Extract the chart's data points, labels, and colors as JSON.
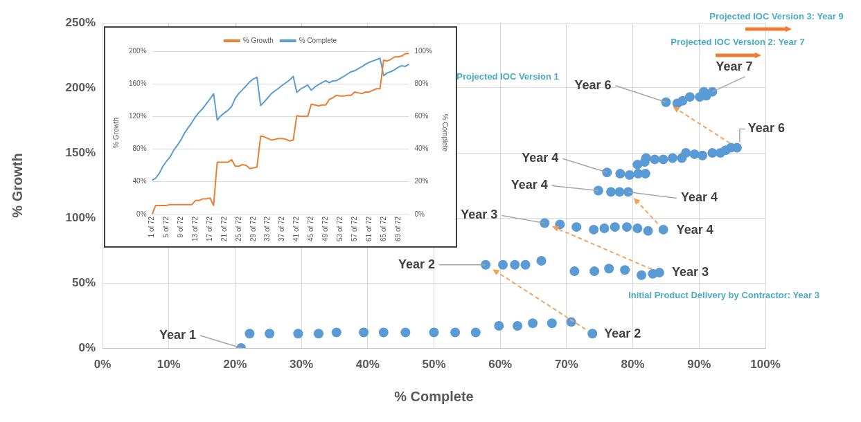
{
  "chart_data": [
    {
      "type": "scatter",
      "xlabel": "% Complete",
      "ylabel": "% Growth",
      "x": [
        20.9,
        22.2,
        25.2,
        29.5,
        32.6,
        35.3,
        39.4,
        42.4,
        45.7,
        50,
        53.2,
        56.3,
        59.8,
        62.6,
        64.9,
        67.8,
        70.7,
        73.9,
        57.8,
        60.4,
        62.2,
        63.8,
        66.2,
        71.2,
        74.2,
        76.4,
        78.8,
        81.3,
        83,
        84,
        66.7,
        69,
        71.5,
        74.1,
        75.7,
        77.3,
        79.1,
        80.7,
        82.3,
        84.6,
        74.8,
        76.7,
        78,
        79.3,
        76.1,
        78.1,
        79.5,
        80.8,
        81.9,
        80.7,
        81.8,
        82,
        83.3,
        84.6,
        86,
        87.4,
        88,
        89.3,
        90.5,
        92,
        93.2,
        94,
        94.8,
        95.7,
        85,
        86.7,
        87.5,
        88.6,
        90.1,
        91.1,
        90.7,
        92
      ],
      "series": [
        {
          "color": "#5b9bd5",
          "values": [
            0,
            11,
            11,
            11,
            11,
            12,
            12,
            12,
            12,
            12,
            12,
            12,
            17,
            17,
            19,
            19,
            20,
            11,
            64,
            64,
            64,
            64,
            67,
            59,
            59,
            61,
            60,
            56,
            57,
            58,
            96,
            95,
            93,
            91,
            92,
            93,
            93,
            92,
            90,
            91,
            121,
            120,
            120,
            120,
            135,
            134,
            133,
            134,
            134,
            141,
            143,
            146,
            145,
            145,
            146,
            146,
            150,
            149,
            148,
            150,
            150,
            152,
            154,
            154,
            189,
            188,
            190,
            193,
            193,
            194,
            197,
            197
          ]
        }
      ],
      "xlim": [
        0,
        100
      ],
      "xticks": [
        {
          "value": 0,
          "label": "0%"
        },
        {
          "value": 10,
          "label": "10%"
        },
        {
          "value": 20,
          "label": "20%"
        },
        {
          "value": 30,
          "label": "30%"
        },
        {
          "value": 40,
          "label": "40%"
        },
        {
          "value": 50,
          "label": "50%"
        },
        {
          "value": 60,
          "label": "60%"
        },
        {
          "value": 70,
          "label": "70%"
        },
        {
          "value": 80,
          "label": "80%"
        },
        {
          "value": 90,
          "label": "90%"
        },
        {
          "value": 100,
          "label": "100%"
        }
      ],
      "ylim": [
        0,
        250
      ],
      "yticks": [
        {
          "value": 0,
          "label": "0%"
        },
        {
          "value": 50,
          "label": "50%"
        },
        {
          "value": 100,
          "label": "100%"
        },
        {
          "value": 150,
          "label": "150%"
        },
        {
          "value": 200,
          "label": "200%"
        },
        {
          "value": 250,
          "label": "250%"
        }
      ],
      "grid": true,
      "legend": false,
      "marker": "circle",
      "annotations": [
        {
          "text": "Year 1",
          "x": 20.9,
          "y": 0
        },
        {
          "text": "Year 2",
          "x": 57.8,
          "y": 64
        },
        {
          "text": "Year 2",
          "x": 73.9,
          "y": 11
        },
        {
          "text": "Year 3",
          "x": 66.7,
          "y": 96
        },
        {
          "text": "Year 3",
          "x": 84,
          "y": 58
        },
        {
          "text": "Year 4",
          "x": 76.1,
          "y": 135
        },
        {
          "text": "Year 4",
          "x": 74.8,
          "y": 121
        },
        {
          "text": "Year 4",
          "x": 79.3,
          "y": 120
        },
        {
          "text": "Year 4",
          "x": 84.6,
          "y": 91
        },
        {
          "text": "Year 6",
          "x": 85,
          "y": 189
        },
        {
          "text": "Year 6",
          "x": 95.7,
          "y": 154
        },
        {
          "text": "Year 7",
          "x": 92,
          "y": 197
        },
        "Projected IOC Version 1",
        "Projected IOC Version 2: Year 7",
        "Projected IOC Version 3: Year 9",
        "Initial Product Delivery by Contractor: Year 3"
      ]
    },
    {
      "type": "line",
      "ylabel": "% Growth",
      "y2label": "% Complete",
      "legend": "top",
      "grid": "y",
      "categories": [
        "1 of 72",
        null,
        null,
        null,
        "5 of 72",
        null,
        null,
        null,
        "9 of 72",
        null,
        null,
        null,
        "13 of 72",
        null,
        null,
        null,
        "17 of 72",
        null,
        null,
        null,
        "21 of 72",
        null,
        null,
        null,
        "25 of 72",
        null,
        null,
        null,
        "29 of 72",
        null,
        null,
        null,
        "33 of 72",
        null,
        null,
        null,
        "37 of 72",
        null,
        null,
        null,
        "41 of 72",
        null,
        null,
        null,
        "45 of 72",
        null,
        null,
        null,
        "49 of 72",
        null,
        null,
        null,
        "53 of 72",
        null,
        null,
        null,
        "57 of 72",
        null,
        null,
        null,
        "61 of 72",
        null,
        null,
        null,
        "65 of 72",
        null,
        null,
        null,
        "69 of 72",
        null,
        null,
        null
      ],
      "series": [
        {
          "name": "% Growth",
          "color": "#ed7d31",
          "values": [
            0,
            11,
            11,
            11,
            11,
            12,
            12,
            12,
            12,
            12,
            12,
            12,
            17,
            17,
            19,
            19,
            20,
            11,
            64,
            64,
            64,
            64,
            67,
            59,
            59,
            61,
            60,
            56,
            57,
            58,
            96,
            95,
            93,
            91,
            92,
            93,
            93,
            92,
            90,
            91,
            121,
            120,
            120,
            120,
            135,
            134,
            133,
            134,
            134,
            141,
            143,
            146,
            145,
            145,
            146,
            146,
            150,
            149,
            148,
            150,
            150,
            152,
            154,
            154,
            189,
            188,
            190,
            193,
            193,
            194,
            197,
            197
          ]
        },
        {
          "name": "% Complete",
          "color": "#5b9bd5",
          "axis": "y2",
          "values": [
            20.9,
            22.2,
            25.2,
            29.5,
            32.6,
            35.3,
            39.4,
            42.4,
            45.7,
            50,
            53.2,
            56.3,
            59.8,
            62.6,
            64.9,
            67.8,
            70.7,
            73.9,
            57.8,
            60.4,
            62.2,
            63.8,
            66.2,
            71.2,
            74.2,
            76.4,
            78.8,
            81.3,
            83,
            84,
            66.7,
            69,
            71.5,
            74.1,
            75.7,
            77.3,
            79.1,
            80.7,
            82.3,
            84.6,
            74.8,
            76.7,
            78,
            79.3,
            76.1,
            78.1,
            79.5,
            80.8,
            81.9,
            80.7,
            81.8,
            82,
            83.3,
            84.6,
            86,
            87.4,
            88,
            89.3,
            90.5,
            92,
            93.2,
            94,
            94.8,
            95.7,
            85,
            86.7,
            87.5,
            88.6,
            90.1,
            91.1,
            90.7,
            92
          ]
        }
      ],
      "ylim": [
        0,
        200
      ],
      "yticks": [
        {
          "value": 0,
          "label": "0%"
        },
        {
          "value": 40,
          "label": "40%"
        },
        {
          "value": 80,
          "label": "80%"
        },
        {
          "value": 120,
          "label": "120%"
        },
        {
          "value": 160,
          "label": "160%"
        },
        {
          "value": 200,
          "label": "200%"
        }
      ],
      "y2lim": [
        0,
        100
      ],
      "y2ticks": [
        {
          "value": 0,
          "label": "0%"
        },
        {
          "value": 20,
          "label": "20%"
        },
        {
          "value": 40,
          "label": "40%"
        },
        {
          "value": 60,
          "label": "60%"
        },
        {
          "value": 80,
          "label": "80%"
        },
        {
          "value": 100,
          "label": "100%"
        }
      ]
    }
  ]
}
